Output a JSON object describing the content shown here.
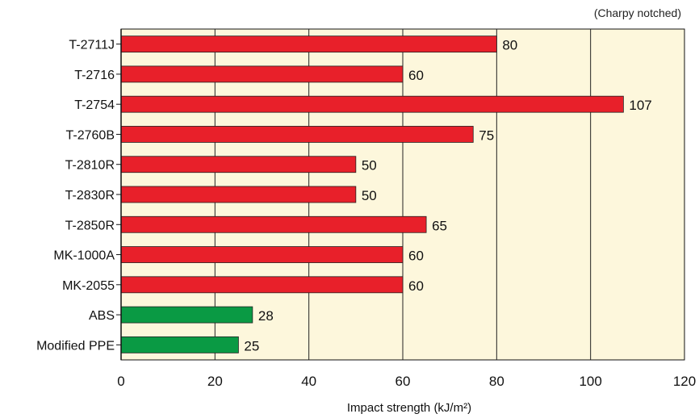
{
  "chart_data": {
    "type": "bar",
    "orientation": "horizontal",
    "note": "(Charpy notched)",
    "categories": [
      "T-2711J",
      "T-2716",
      "T-2754",
      "T-2760B",
      "T-2810R",
      "T-2830R",
      "T-2850R",
      "MK-1000A",
      "MK-2055",
      "ABS",
      "Modified PPE"
    ],
    "values": [
      80,
      60,
      107,
      75,
      50,
      50,
      65,
      60,
      60,
      28,
      25
    ],
    "bar_colors": [
      "#e8202a",
      "#e8202a",
      "#e8202a",
      "#e8202a",
      "#e8202a",
      "#e8202a",
      "#e8202a",
      "#e8202a",
      "#e8202a",
      "#0a9a44",
      "#0a9a44"
    ],
    "xlabel": "Impact strength (kJ/m²)",
    "xlim": [
      0,
      120
    ],
    "xticks": [
      0,
      20,
      40,
      60,
      80,
      100,
      120
    ],
    "grid": true,
    "plot_background": "#fdf7dc"
  }
}
